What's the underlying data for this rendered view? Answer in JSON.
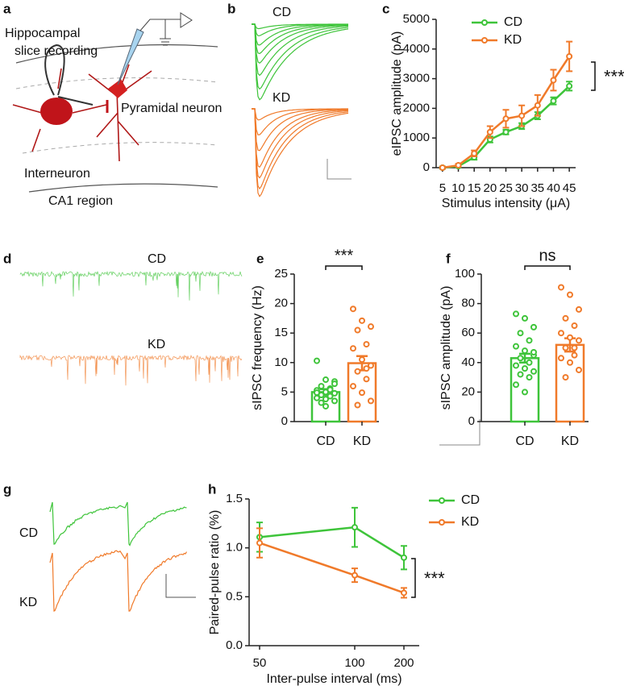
{
  "panel_labels": [
    "a",
    "b",
    "c",
    "d",
    "e",
    "f",
    "g",
    "h"
  ],
  "diagram": {
    "title_lines": [
      "Hippocampal",
      "slice recording"
    ],
    "labels": [
      "Pyramidal neuron",
      "Interneuron",
      "CA1 region"
    ]
  },
  "traces": {
    "b": [
      "CD",
      "KD"
    ],
    "d": [
      "CD",
      "KD"
    ],
    "g": [
      "CD",
      "KD"
    ]
  },
  "chart_data": [
    {
      "type": "line",
      "ylabel": "eIPSC amplitude (pA)",
      "xlabel": "Stimulus intensity (μA)",
      "x": [
        5,
        10,
        15,
        20,
        25,
        30,
        35,
        40,
        45
      ],
      "xlim": [
        3,
        47
      ],
      "xticks": [
        5,
        10,
        15,
        20,
        25,
        30,
        35,
        40,
        45
      ],
      "ylim": [
        0,
        5000
      ],
      "yticks": [
        0,
        1000,
        2000,
        3000,
        4000,
        5000
      ],
      "annotation": "***",
      "series": [
        {
          "name": "CD",
          "color": "#3ec43a",
          "values": [
            0,
            50,
            350,
            950,
            1200,
            1400,
            1750,
            2250,
            2750
          ],
          "errors": [
            40,
            30,
            80,
            100,
            80,
            100,
            120,
            120,
            150
          ]
        },
        {
          "name": "KD",
          "color": "#f07a2a",
          "values": [
            0,
            80,
            480,
            1200,
            1650,
            1750,
            2100,
            2950,
            3750
          ],
          "errors": [
            30,
            50,
            100,
            200,
            300,
            350,
            350,
            350,
            500
          ]
        }
      ]
    },
    {
      "type": "bar",
      "ylabel": "sIPSC frequency (Hz)",
      "categories": [
        "CD",
        "KD"
      ],
      "colors": [
        "#3ec43a",
        "#f07a2a"
      ],
      "values": [
        5.0,
        9.9
      ],
      "errors": [
        0.5,
        1.2
      ],
      "ylim": [
        0,
        25
      ],
      "yticks": [
        0,
        5,
        10,
        15,
        20,
        25
      ],
      "annotation": "***",
      "points": [
        [
          10.3,
          7.1,
          6.8,
          6.0,
          5.6,
          5.3,
          5.0,
          4.8,
          4.5,
          4.3,
          4.0,
          3.8,
          3.5,
          3.2,
          5.4,
          4.9,
          2.6,
          6.4
        ],
        [
          19.1,
          17.1,
          16.1,
          15.5,
          13.1,
          12.4,
          10.5,
          9.5,
          8.5,
          7.2,
          6.0,
          4.9,
          3.5,
          2.8,
          9.0
        ]
      ]
    },
    {
      "type": "bar",
      "ylabel": "sIPSC amplitude (pA)",
      "categories": [
        "CD",
        "KD"
      ],
      "colors": [
        "#3ec43a",
        "#f07a2a"
      ],
      "values": [
        43,
        52
      ],
      "errors": [
        3,
        4.5
      ],
      "ylim": [
        0,
        100
      ],
      "yticks": [
        0,
        20,
        40,
        60,
        80,
        100
      ],
      "annotation": "ns",
      "points": [
        [
          73,
          70,
          64,
          60,
          55,
          51,
          48,
          45,
          43,
          40,
          38,
          36,
          34,
          32,
          30,
          25,
          20,
          47
        ],
        [
          91,
          86,
          76,
          70,
          65,
          60,
          57,
          55,
          50,
          45,
          43,
          40,
          35,
          30,
          50
        ]
      ]
    },
    {
      "type": "line",
      "ylabel": "Paired-pulse ratio (%)",
      "xlabel": "Inter-pulse interval (ms)",
      "categories": [
        "50",
        "100",
        "200"
      ],
      "ylim": [
        0,
        1.5
      ],
      "yticks": [
        {
          "value": 0,
          "label": "0.0"
        },
        {
          "value": 0.5,
          "label": "0.5"
        },
        {
          "value": 1,
          "label": "1.0"
        },
        {
          "value": 1.5,
          "label": "1.5"
        }
      ],
      "annotation": "***",
      "series": [
        {
          "name": "CD",
          "color": "#3ec43a",
          "values": [
            1.11,
            1.21,
            0.9
          ],
          "errors": [
            0.15,
            0.2,
            0.12
          ]
        },
        {
          "name": "KD",
          "color": "#f07a2a",
          "values": [
            1.05,
            0.72,
            0.54
          ],
          "errors": [
            0.15,
            0.07,
            0.05
          ]
        }
      ]
    }
  ]
}
